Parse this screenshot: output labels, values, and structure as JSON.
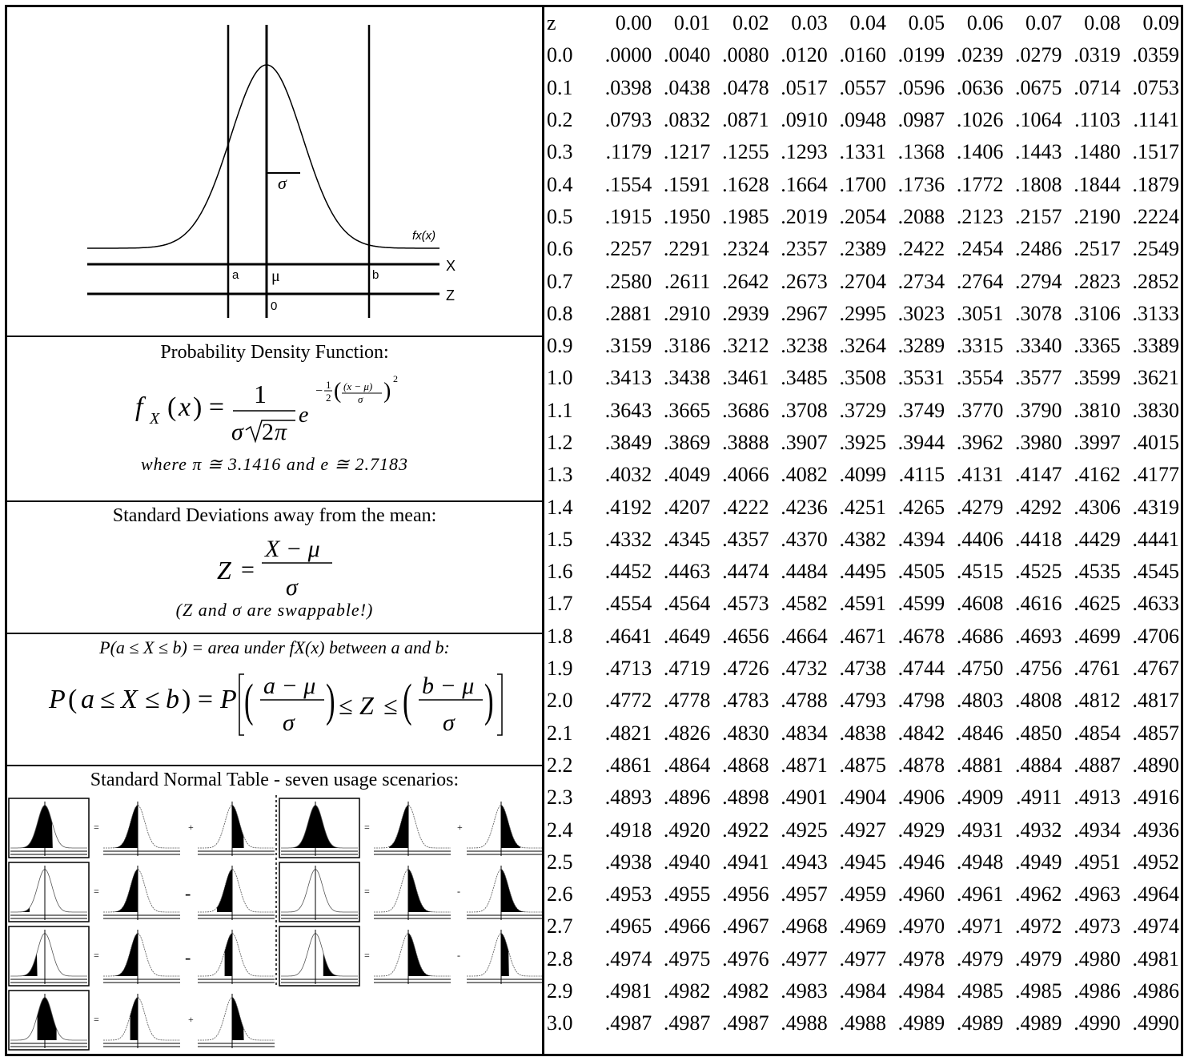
{
  "figure": {
    "curve_label": "fx(x)",
    "axis_x": "X",
    "axis_z": "Z",
    "label_a": "a",
    "label_b": "b",
    "label_mu": "μ",
    "label_zero": "0",
    "label_sigma": "σ"
  },
  "pdf": {
    "title": "Probability Density Function:",
    "note": "where π ≅ 3.1416 and e ≅ 2.7183"
  },
  "zscore": {
    "title": "Standard Deviations away from the mean:",
    "note": "(Z and σ are swappable!)"
  },
  "probability": {
    "title": "P(a ≤ X ≤ b) = area under fX(x) between a and b:"
  },
  "usage": {
    "title": "Standard Normal Table - seven usage scenarios:"
  },
  "ztable": {
    "header": [
      "z",
      "0.00",
      "0.01",
      "0.02",
      "0.03",
      "0.04",
      "0.05",
      "0.06",
      "0.07",
      "0.08",
      "0.09"
    ],
    "rows": [
      [
        "0.0",
        ".0000",
        ".0040",
        ".0080",
        ".0120",
        ".0160",
        ".0199",
        ".0239",
        ".0279",
        ".0319",
        ".0359"
      ],
      [
        "0.1",
        ".0398",
        ".0438",
        ".0478",
        ".0517",
        ".0557",
        ".0596",
        ".0636",
        ".0675",
        ".0714",
        ".0753"
      ],
      [
        "0.2",
        ".0793",
        ".0832",
        ".0871",
        ".0910",
        ".0948",
        ".0987",
        ".1026",
        ".1064",
        ".1103",
        ".1141"
      ],
      [
        "0.3",
        ".1179",
        ".1217",
        ".1255",
        ".1293",
        ".1331",
        ".1368",
        ".1406",
        ".1443",
        ".1480",
        ".1517"
      ],
      [
        "0.4",
        ".1554",
        ".1591",
        ".1628",
        ".1664",
        ".1700",
        ".1736",
        ".1772",
        ".1808",
        ".1844",
        ".1879"
      ],
      [
        "0.5",
        ".1915",
        ".1950",
        ".1985",
        ".2019",
        ".2054",
        ".2088",
        ".2123",
        ".2157",
        ".2190",
        ".2224"
      ],
      [
        "0.6",
        ".2257",
        ".2291",
        ".2324",
        ".2357",
        ".2389",
        ".2422",
        ".2454",
        ".2486",
        ".2517",
        ".2549"
      ],
      [
        "0.7",
        ".2580",
        ".2611",
        ".2642",
        ".2673",
        ".2704",
        ".2734",
        ".2764",
        ".2794",
        ".2823",
        ".2852"
      ],
      [
        "0.8",
        ".2881",
        ".2910",
        ".2939",
        ".2967",
        ".2995",
        ".3023",
        ".3051",
        ".3078",
        ".3106",
        ".3133"
      ],
      [
        "0.9",
        ".3159",
        ".3186",
        ".3212",
        ".3238",
        ".3264",
        ".3289",
        ".3315",
        ".3340",
        ".3365",
        ".3389"
      ],
      [
        "1.0",
        ".3413",
        ".3438",
        ".3461",
        ".3485",
        ".3508",
        ".3531",
        ".3554",
        ".3577",
        ".3599",
        ".3621"
      ],
      [
        "1.1",
        ".3643",
        ".3665",
        ".3686",
        ".3708",
        ".3729",
        ".3749",
        ".3770",
        ".3790",
        ".3810",
        ".3830"
      ],
      [
        "1.2",
        ".3849",
        ".3869",
        ".3888",
        ".3907",
        ".3925",
        ".3944",
        ".3962",
        ".3980",
        ".3997",
        ".4015"
      ],
      [
        "1.3",
        ".4032",
        ".4049",
        ".4066",
        ".4082",
        ".4099",
        ".4115",
        ".4131",
        ".4147",
        ".4162",
        ".4177"
      ],
      [
        "1.4",
        ".4192",
        ".4207",
        ".4222",
        ".4236",
        ".4251",
        ".4265",
        ".4279",
        ".4292",
        ".4306",
        ".4319"
      ],
      [
        "1.5",
        ".4332",
        ".4345",
        ".4357",
        ".4370",
        ".4382",
        ".4394",
        ".4406",
        ".4418",
        ".4429",
        ".4441"
      ],
      [
        "1.6",
        ".4452",
        ".4463",
        ".4474",
        ".4484",
        ".4495",
        ".4505",
        ".4515",
        ".4525",
        ".4535",
        ".4545"
      ],
      [
        "1.7",
        ".4554",
        ".4564",
        ".4573",
        ".4582",
        ".4591",
        ".4599",
        ".4608",
        ".4616",
        ".4625",
        ".4633"
      ],
      [
        "1.8",
        ".4641",
        ".4649",
        ".4656",
        ".4664",
        ".4671",
        ".4678",
        ".4686",
        ".4693",
        ".4699",
        ".4706"
      ],
      [
        "1.9",
        ".4713",
        ".4719",
        ".4726",
        ".4732",
        ".4738",
        ".4744",
        ".4750",
        ".4756",
        ".4761",
        ".4767"
      ],
      [
        "2.0",
        ".4772",
        ".4778",
        ".4783",
        ".4788",
        ".4793",
        ".4798",
        ".4803",
        ".4808",
        ".4812",
        ".4817"
      ],
      [
        "2.1",
        ".4821",
        ".4826",
        ".4830",
        ".4834",
        ".4838",
        ".4842",
        ".4846",
        ".4850",
        ".4854",
        ".4857"
      ],
      [
        "2.2",
        ".4861",
        ".4864",
        ".4868",
        ".4871",
        ".4875",
        ".4878",
        ".4881",
        ".4884",
        ".4887",
        ".4890"
      ],
      [
        "2.3",
        ".4893",
        ".4896",
        ".4898",
        ".4901",
        ".4904",
        ".4906",
        ".4909",
        ".4911",
        ".4913",
        ".4916"
      ],
      [
        "2.4",
        ".4918",
        ".4920",
        ".4922",
        ".4925",
        ".4927",
        ".4929",
        ".4931",
        ".4932",
        ".4934",
        ".4936"
      ],
      [
        "2.5",
        ".4938",
        ".4940",
        ".4941",
        ".4943",
        ".4945",
        ".4946",
        ".4948",
        ".4949",
        ".4951",
        ".4952"
      ],
      [
        "2.6",
        ".4953",
        ".4955",
        ".4956",
        ".4957",
        ".4959",
        ".4960",
        ".4961",
        ".4962",
        ".4963",
        ".4964"
      ],
      [
        "2.7",
        ".4965",
        ".4966",
        ".4967",
        ".4968",
        ".4969",
        ".4970",
        ".4971",
        ".4972",
        ".4973",
        ".4974"
      ],
      [
        "2.8",
        ".4974",
        ".4975",
        ".4976",
        ".4977",
        ".4977",
        ".4978",
        ".4979",
        ".4979",
        ".4980",
        ".4981"
      ],
      [
        "2.9",
        ".4981",
        ".4982",
        ".4982",
        ".4983",
        ".4984",
        ".4984",
        ".4985",
        ".4985",
        ".4986",
        ".4986"
      ],
      [
        "3.0",
        ".4987",
        ".4987",
        ".4987",
        ".4988",
        ".4988",
        ".4989",
        ".4989",
        ".4989",
        ".4990",
        ".4990"
      ]
    ]
  }
}
